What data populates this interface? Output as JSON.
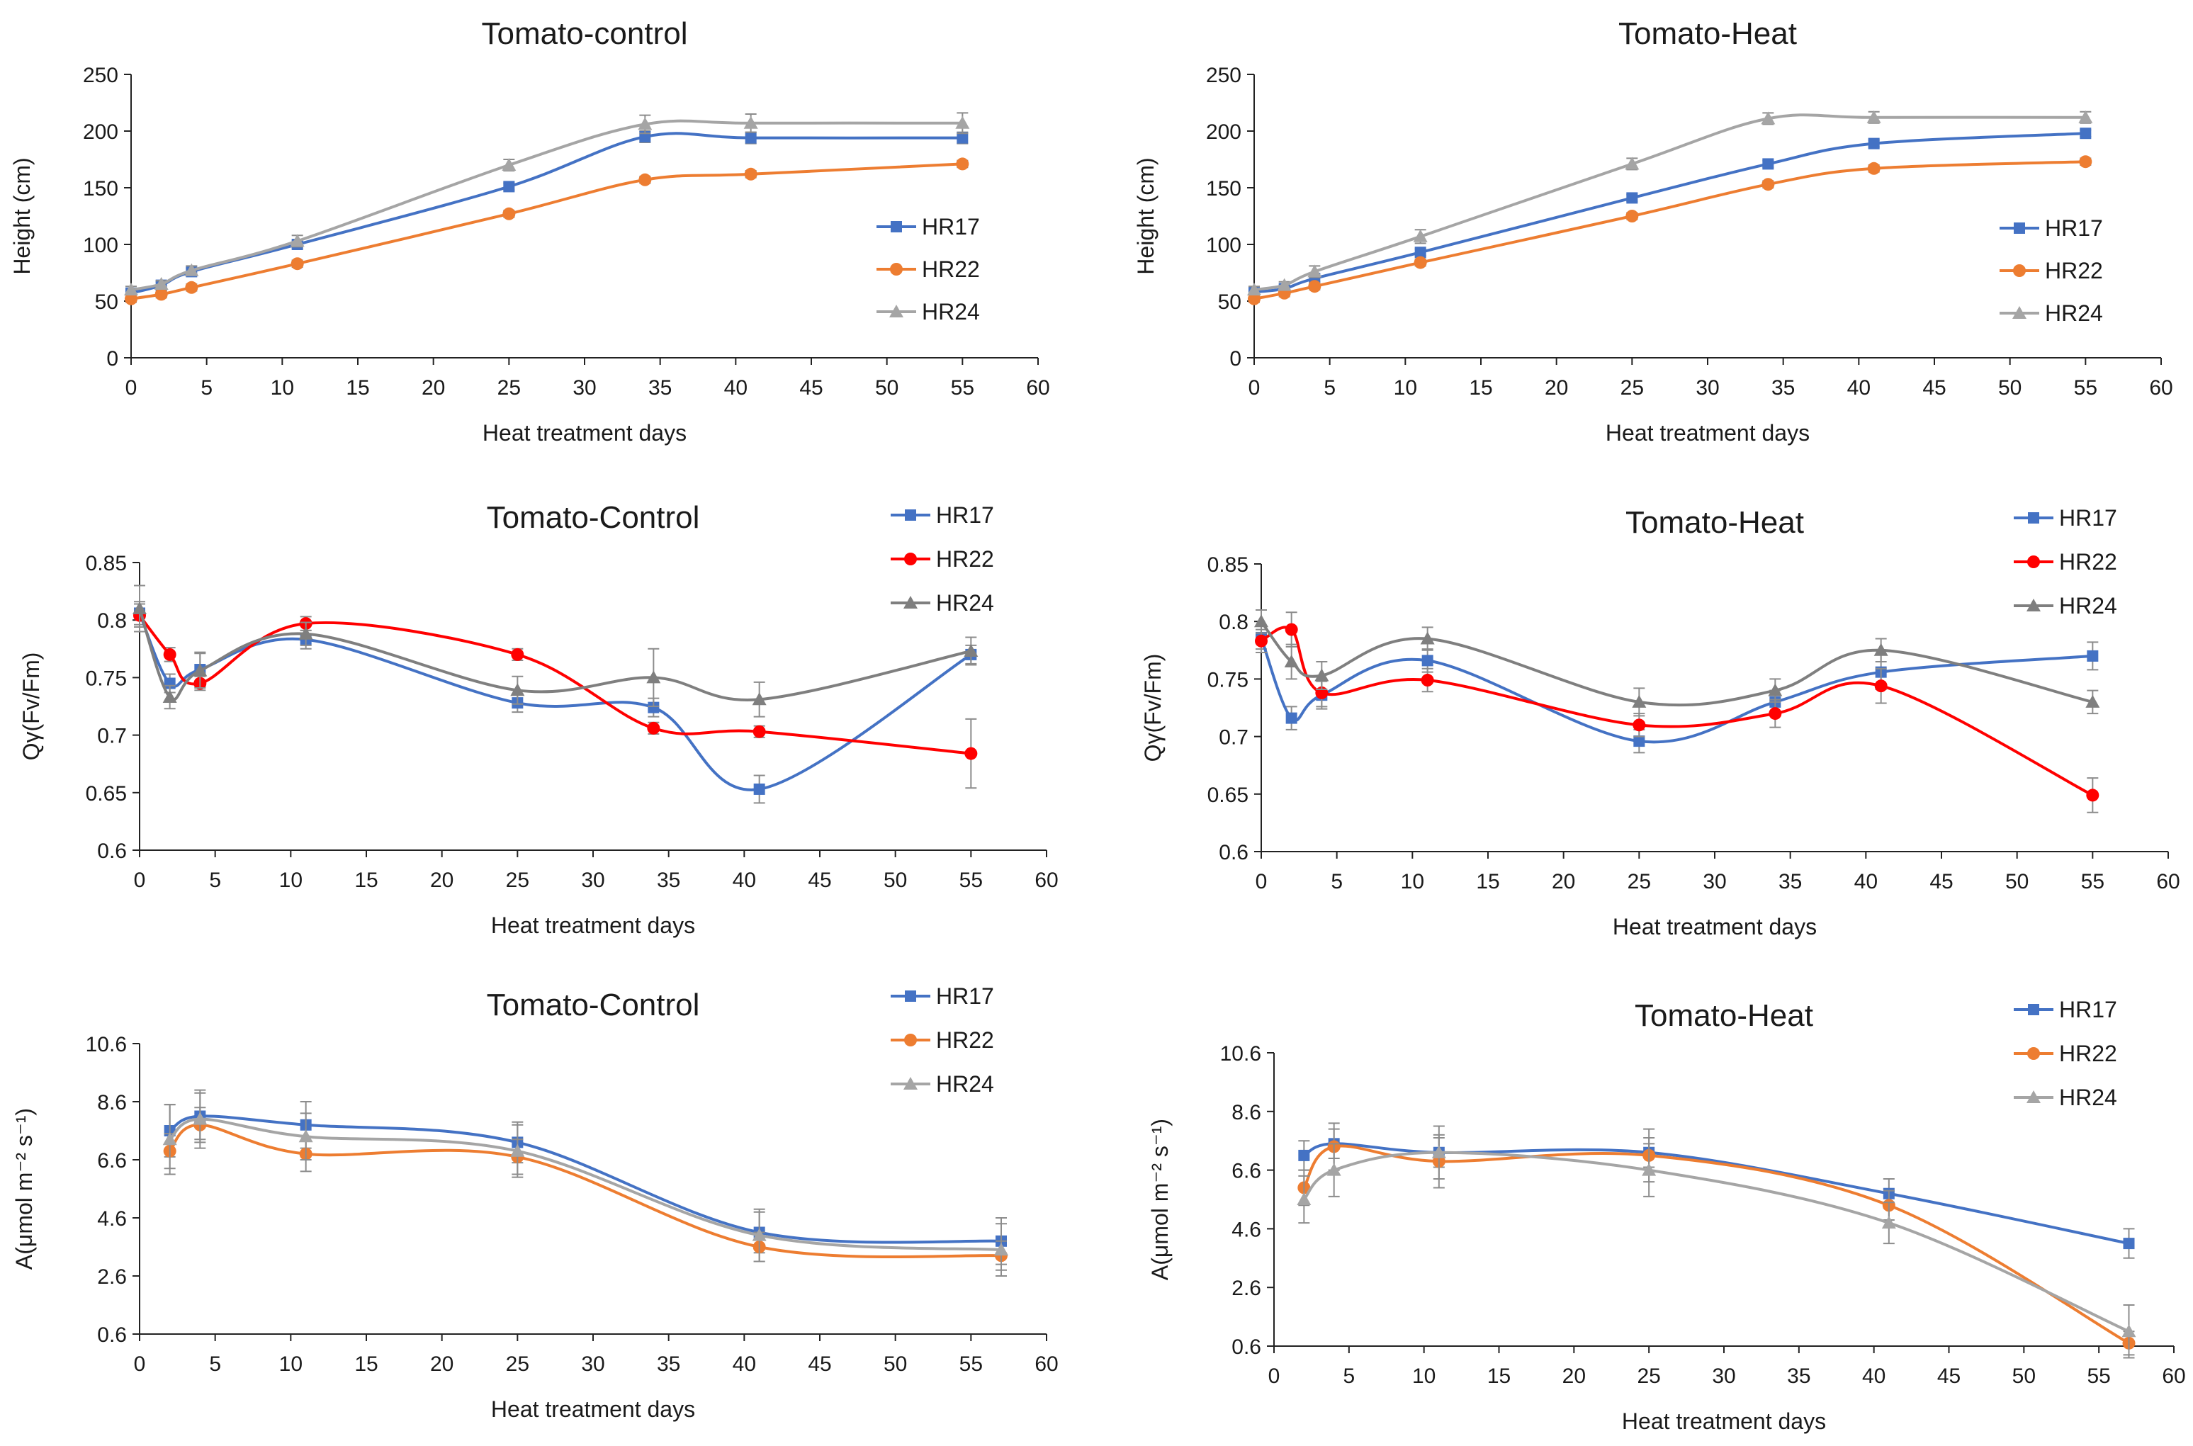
{
  "chart_data": [
    {
      "id": "p1",
      "type": "line",
      "title": "Tomato-control",
      "xlabel": "Heat treatment days",
      "ylabel": "Height (cm)",
      "xlim": [
        0,
        60
      ],
      "ylim": [
        0,
        250
      ],
      "xticks": [
        "0",
        "5",
        "10",
        "15",
        "20",
        "25",
        "30",
        "35",
        "40",
        "45",
        "50",
        "55",
        "60"
      ],
      "yticks": [
        "0",
        "50",
        "100",
        "150",
        "200",
        "250"
      ],
      "smooth": true,
      "legend_position": "right",
      "series": [
        {
          "name": "HR17",
          "color": "#4472c4",
          "marker": "square",
          "x": [
            0,
            2,
            4,
            11,
            25,
            34,
            41,
            55
          ],
          "values": [
            57,
            64,
            76,
            100,
            151,
            195,
            194,
            194
          ],
          "errors": [
            3,
            3,
            3,
            3,
            3,
            5,
            5,
            5
          ]
        },
        {
          "name": "HR22",
          "color": "#ed7d31",
          "marker": "circle",
          "x": [
            0,
            2,
            4,
            11,
            25,
            34,
            41,
            55
          ],
          "values": [
            52,
            56,
            62,
            83,
            127,
            157,
            162,
            171
          ],
          "errors": [
            3,
            3,
            3,
            3,
            3,
            3,
            3,
            3
          ]
        },
        {
          "name": "HR24",
          "color": "#a5a5a5",
          "marker": "triangle",
          "x": [
            0,
            2,
            4,
            11,
            25,
            34,
            41,
            55
          ],
          "values": [
            60,
            65,
            77,
            103,
            170,
            206,
            207,
            207
          ],
          "errors": [
            3,
            3,
            4,
            5,
            5,
            8,
            8,
            9
          ]
        }
      ]
    },
    {
      "id": "p2",
      "type": "line",
      "title": "Tomato-Heat",
      "xlabel": "Heat treatment days",
      "ylabel": "Height (cm)",
      "xlim": [
        0,
        60
      ],
      "ylim": [
        0,
        250
      ],
      "xticks": [
        "0",
        "5",
        "10",
        "15",
        "20",
        "25",
        "30",
        "35",
        "40",
        "45",
        "50",
        "55",
        "60"
      ],
      "yticks": [
        "0",
        "50",
        "100",
        "150",
        "200",
        "250"
      ],
      "smooth": true,
      "legend_position": "right",
      "series": [
        {
          "name": "HR17",
          "color": "#4472c4",
          "marker": "square",
          "x": [
            0,
            2,
            4,
            11,
            25,
            34,
            41,
            55
          ],
          "values": [
            58,
            61,
            70,
            93,
            141,
            171,
            189,
            198
          ],
          "errors": [
            3,
            3,
            3,
            3,
            3,
            3,
            3,
            3
          ]
        },
        {
          "name": "HR22",
          "color": "#ed7d31",
          "marker": "circle",
          "x": [
            0,
            2,
            4,
            11,
            25,
            34,
            41,
            55
          ],
          "values": [
            52,
            57,
            63,
            84,
            125,
            153,
            167,
            173
          ],
          "errors": [
            3,
            3,
            3,
            3,
            3,
            3,
            3,
            3
          ]
        },
        {
          "name": "HR24",
          "color": "#a5a5a5",
          "marker": "triangle",
          "x": [
            0,
            2,
            4,
            11,
            25,
            34,
            41,
            55
          ],
          "values": [
            60,
            64,
            76,
            107,
            171,
            211,
            212,
            212
          ],
          "errors": [
            3,
            3,
            5,
            6,
            5,
            5,
            5,
            5
          ]
        }
      ]
    },
    {
      "id": "p3",
      "type": "line",
      "title": "Tomato-Control",
      "xlabel": "Heat treatment days",
      "ylabel": "Qγ(Fv/Fm)",
      "xlim": [
        0,
        60
      ],
      "ylim": [
        0.6,
        0.85
      ],
      "xticks": [
        "0",
        "5",
        "10",
        "15",
        "20",
        "25",
        "30",
        "35",
        "40",
        "45",
        "50",
        "55",
        "60"
      ],
      "yticks": [
        "0.6",
        "0.65",
        "0.7",
        "0.75",
        "0.8",
        "0.85"
      ],
      "smooth": true,
      "legend_position": "top-right",
      "series": [
        {
          "name": "HR17",
          "color": "#4472c4",
          "marker": "square",
          "x": [
            0,
            2,
            4,
            11,
            25,
            34,
            41,
            55
          ],
          "values": [
            0.806,
            0.745,
            0.757,
            0.783,
            0.728,
            0.724,
            0.653,
            0.77
          ],
          "errors": [
            0.01,
            0.008,
            0.015,
            0.008,
            0.008,
            0.008,
            0.012,
            0.008
          ]
        },
        {
          "name": "HR22",
          "color": "#ff0000",
          "marker": "circle",
          "x": [
            0,
            2,
            4,
            11,
            25,
            34,
            41,
            55
          ],
          "values": [
            0.804,
            0.77,
            0.745,
            0.797,
            0.77,
            0.706,
            0.703,
            0.684
          ],
          "errors": [
            0.01,
            0.006,
            0.006,
            0.006,
            0.005,
            0.005,
            0.005,
            0.03
          ]
        },
        {
          "name": "HR24",
          "color": "#7f7f7f",
          "marker": "triangle",
          "x": [
            0,
            2,
            4,
            11,
            25,
            34,
            41,
            55
          ],
          "values": [
            0.81,
            0.733,
            0.756,
            0.788,
            0.739,
            0.75,
            0.731,
            0.773
          ],
          "errors": [
            0.02,
            0.01,
            0.015,
            0.01,
            0.012,
            0.025,
            0.015,
            0.012
          ]
        }
      ]
    },
    {
      "id": "p4",
      "type": "line",
      "title": "Tomato-Heat",
      "xlabel": "Heat treatment days",
      "ylabel": "Qγ(Fv/Fm)",
      "xlim": [
        0,
        60
      ],
      "ylim": [
        0.6,
        0.85
      ],
      "xticks": [
        "0",
        "5",
        "10",
        "15",
        "20",
        "25",
        "30",
        "35",
        "40",
        "45",
        "50",
        "55",
        "60"
      ],
      "yticks": [
        "0.6",
        "0.65",
        "0.7",
        "0.75",
        "0.8",
        "0.85"
      ],
      "smooth": true,
      "legend_position": "top-right",
      "series": [
        {
          "name": "HR17",
          "color": "#4472c4",
          "marker": "square",
          "x": [
            0,
            2,
            4,
            11,
            25,
            34,
            41,
            55
          ],
          "values": [
            0.786,
            0.716,
            0.736,
            0.766,
            0.696,
            0.73,
            0.756,
            0.77
          ],
          "errors": [
            0.01,
            0.01,
            0.012,
            0.01,
            0.01,
            0.01,
            0.015,
            0.012
          ]
        },
        {
          "name": "HR22",
          "color": "#ff0000",
          "marker": "circle",
          "x": [
            0,
            2,
            4,
            11,
            25,
            34,
            41,
            55
          ],
          "values": [
            0.783,
            0.793,
            0.738,
            0.749,
            0.71,
            0.72,
            0.744,
            0.649
          ],
          "errors": [
            0.01,
            0.015,
            0.012,
            0.01,
            0.01,
            0.012,
            0.015,
            0.015
          ]
        },
        {
          "name": "HR24",
          "color": "#7f7f7f",
          "marker": "triangle",
          "x": [
            0,
            2,
            4,
            11,
            25,
            34,
            41,
            55
          ],
          "values": [
            0.8,
            0.765,
            0.753,
            0.785,
            0.73,
            0.74,
            0.775,
            0.73
          ],
          "errors": [
            0.01,
            0.015,
            0.012,
            0.01,
            0.012,
            0.01,
            0.01,
            0.01
          ]
        }
      ]
    },
    {
      "id": "p5",
      "type": "line",
      "title": "Tomato-Control",
      "xlabel": "Heat treatment days",
      "ylabel": "A(μmol m⁻² s⁻¹)",
      "xlim": [
        0,
        60
      ],
      "ylim": [
        0.6,
        10.6
      ],
      "xticks": [
        "0",
        "5",
        "10",
        "15",
        "20",
        "25",
        "30",
        "35",
        "40",
        "45",
        "50",
        "55",
        "60"
      ],
      "yticks": [
        "0.6",
        "2.6",
        "4.6",
        "6.6",
        "8.6",
        "10.6"
      ],
      "smooth": true,
      "legend_position": "top-right",
      "series": [
        {
          "name": "HR17",
          "color": "#4472c4",
          "marker": "square",
          "x": [
            2,
            4,
            11,
            25,
            41,
            57
          ],
          "values": [
            7.6,
            8.1,
            7.8,
            7.2,
            4.1,
            3.8
          ],
          "errors": [
            0.9,
            0.8,
            0.8,
            0.7,
            0.7,
            0.8
          ]
        },
        {
          "name": "HR22",
          "color": "#ed7d31",
          "marker": "circle",
          "x": [
            2,
            4,
            11,
            25,
            41,
            57
          ],
          "values": [
            6.9,
            7.8,
            6.8,
            6.7,
            3.6,
            3.3
          ],
          "errors": [
            0.6,
            0.6,
            0.6,
            0.6,
            0.5,
            0.5
          ]
        },
        {
          "name": "HR24",
          "color": "#a5a5a5",
          "marker": "triangle",
          "x": [
            2,
            4,
            11,
            25,
            41,
            57
          ],
          "values": [
            7.3,
            8.0,
            7.4,
            6.9,
            4.0,
            3.5
          ],
          "errors": [
            1.2,
            1.0,
            0.8,
            0.9,
            0.9,
            0.9
          ]
        }
      ]
    },
    {
      "id": "p6",
      "type": "line",
      "title": "Tomato-Heat",
      "xlabel": "Heat treatment days",
      "ylabel": "A(μmol m⁻² s⁻¹)",
      "xlim": [
        0,
        60
      ],
      "ylim": [
        0.6,
        10.6
      ],
      "xticks": [
        "0",
        "5",
        "10",
        "15",
        "20",
        "25",
        "30",
        "35",
        "40",
        "45",
        "50",
        "55",
        "60"
      ],
      "yticks": [
        "0.6",
        "2.6",
        "4.6",
        "6.6",
        "8.6",
        "10.6"
      ],
      "smooth": true,
      "legend_position": "top-right",
      "series": [
        {
          "name": "HR17",
          "color": "#4472c4",
          "marker": "square",
          "x": [
            2,
            4,
            11,
            25,
            41,
            57
          ],
          "values": [
            7.1,
            7.5,
            7.2,
            7.2,
            5.8,
            4.1
          ],
          "errors": [
            0.5,
            0.5,
            0.5,
            0.5,
            0.5,
            0.5
          ]
        },
        {
          "name": "HR22",
          "color": "#ed7d31",
          "marker": "circle",
          "x": [
            2,
            4,
            11,
            25,
            41,
            57
          ],
          "values": [
            6.0,
            7.4,
            6.9,
            7.1,
            5.4,
            0.7
          ],
          "errors": [
            0.6,
            0.8,
            0.9,
            0.9,
            0.5,
            0.4
          ]
        },
        {
          "name": "HR24",
          "color": "#a5a5a5",
          "marker": "triangle",
          "x": [
            2,
            4,
            11,
            25,
            41,
            57
          ],
          "values": [
            5.6,
            6.6,
            7.2,
            6.6,
            4.8,
            1.1
          ],
          "errors": [
            0.8,
            0.9,
            0.9,
            0.9,
            0.7,
            0.9
          ]
        }
      ]
    }
  ]
}
